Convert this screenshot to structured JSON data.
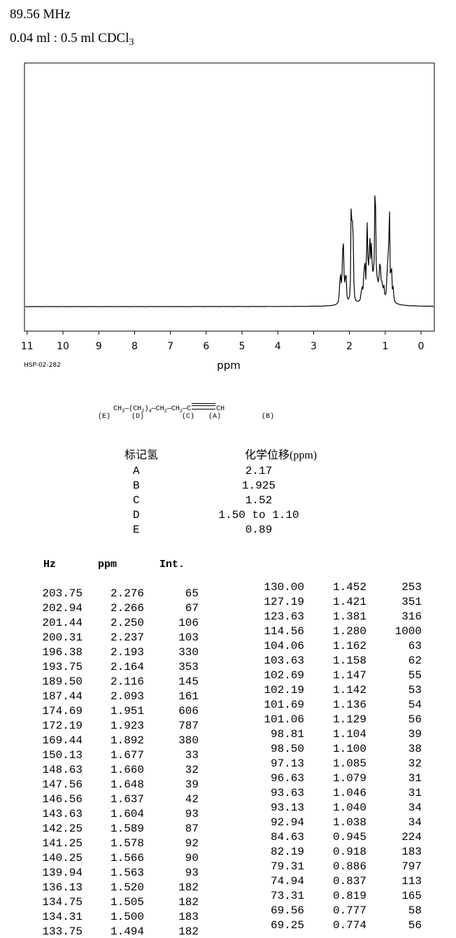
{
  "header": {
    "frequency": "89.56 MHz",
    "sample_prefix": "0.04 ml : 0.5 ml CDCl",
    "sample_sub": "3"
  },
  "spectrum_code": "HSP-02-282",
  "chart_data": {
    "type": "line",
    "xlabel": "ppm",
    "xlim": [
      11,
      0
    ],
    "x_ticks": [
      "11",
      "10",
      "9",
      "8",
      "7",
      "6",
      "5",
      "4",
      "3",
      "2",
      "1",
      "0"
    ],
    "baseline_intensity": 0,
    "series": [
      {
        "x": [
          2.276,
          2.266,
          2.25,
          2.237,
          2.193,
          2.164,
          2.116,
          2.093,
          1.951,
          1.923,
          1.892,
          1.677,
          1.66,
          1.648,
          1.637,
          1.604,
          1.589,
          1.578,
          1.566,
          1.563,
          1.52,
          1.505,
          1.5,
          1.494,
          1.452,
          1.421,
          1.381,
          1.28,
          1.162,
          1.158,
          1.147,
          1.142,
          1.136,
          1.129,
          1.104,
          1.1,
          1.085,
          1.079,
          1.046,
          1.04,
          1.038,
          0.945,
          0.918,
          0.886,
          0.837,
          0.819,
          0.777,
          0.774
        ],
        "values": [
          65,
          67,
          106,
          103,
          330,
          353,
          145,
          161,
          606,
          787,
          380,
          33,
          32,
          39,
          42,
          93,
          87,
          92,
          90,
          93,
          182,
          182,
          183,
          182,
          253,
          351,
          316,
          1000,
          63,
          62,
          55,
          53,
          54,
          56,
          39,
          38,
          32,
          31,
          31,
          34,
          34,
          224,
          183,
          797,
          113,
          165,
          58,
          56
        ]
      }
    ]
  },
  "structure": {
    "formula_parts": [
      "CH",
      "3",
      "—(CH",
      "2",
      ")",
      "4",
      "—CH",
      "2",
      "—CH",
      "2",
      "—C",
      "CH"
    ],
    "labels": [
      "(E)",
      "(D)",
      "(C)",
      "(A)",
      "(B)"
    ]
  },
  "assignments": {
    "col1_header": "标记氢",
    "col2_header": "化学位移(ppm)",
    "rows": [
      {
        "label": "A",
        "shift": "2.17"
      },
      {
        "label": "B",
        "shift": "1.925"
      },
      {
        "label": "C",
        "shift": "1.52"
      },
      {
        "label": "D",
        "shift": "1.50 to 1.10"
      },
      {
        "label": "E",
        "shift": "0.89"
      }
    ]
  },
  "peak_table": {
    "headers": [
      "Hz",
      "ppm",
      "Int."
    ],
    "left": [
      [
        "203.75",
        "2.276",
        "65"
      ],
      [
        "202.94",
        "2.266",
        "67"
      ],
      [
        "201.44",
        "2.250",
        "106"
      ],
      [
        "200.31",
        "2.237",
        "103"
      ],
      [
        "196.38",
        "2.193",
        "330"
      ],
      [
        "193.75",
        "2.164",
        "353"
      ],
      [
        "189.50",
        "2.116",
        "145"
      ],
      [
        "187.44",
        "2.093",
        "161"
      ],
      [
        "174.69",
        "1.951",
        "606"
      ],
      [
        "172.19",
        "1.923",
        "787"
      ],
      [
        "169.44",
        "1.892",
        "380"
      ],
      [
        "150.13",
        "1.677",
        "33"
      ],
      [
        "148.63",
        "1.660",
        "32"
      ],
      [
        "147.56",
        "1.648",
        "39"
      ],
      [
        "146.56",
        "1.637",
        "42"
      ],
      [
        "143.63",
        "1.604",
        "93"
      ],
      [
        "142.25",
        "1.589",
        "87"
      ],
      [
        "141.25",
        "1.578",
        "92"
      ],
      [
        "140.25",
        "1.566",
        "90"
      ],
      [
        "139.94",
        "1.563",
        "93"
      ],
      [
        "136.13",
        "1.520",
        "182"
      ],
      [
        "134.75",
        "1.505",
        "182"
      ],
      [
        "134.31",
        "1.500",
        "183"
      ],
      [
        "133.75",
        "1.494",
        "182"
      ]
    ],
    "right": [
      [
        "130.00",
        "1.452",
        "253"
      ],
      [
        "127.19",
        "1.421",
        "351"
      ],
      [
        "123.63",
        "1.381",
        "316"
      ],
      [
        "114.56",
        "1.280",
        "1000"
      ],
      [
        "104.06",
        "1.162",
        "63"
      ],
      [
        "103.63",
        "1.158",
        "62"
      ],
      [
        "102.69",
        "1.147",
        "55"
      ],
      [
        "102.19",
        "1.142",
        "53"
      ],
      [
        "101.69",
        "1.136",
        "54"
      ],
      [
        "101.06",
        "1.129",
        "56"
      ],
      [
        "98.81",
        "1.104",
        "39"
      ],
      [
        "98.50",
        "1.100",
        "38"
      ],
      [
        "97.13",
        "1.085",
        "32"
      ],
      [
        "96.63",
        "1.079",
        "31"
      ],
      [
        "93.63",
        "1.046",
        "31"
      ],
      [
        "93.13",
        "1.040",
        "34"
      ],
      [
        "92.94",
        "1.038",
        "34"
      ],
      [
        "84.63",
        "0.945",
        "224"
      ],
      [
        "82.19",
        "0.918",
        "183"
      ],
      [
        "79.31",
        "0.886",
        "797"
      ],
      [
        "74.94",
        "0.837",
        "113"
      ],
      [
        "73.31",
        "0.819",
        "165"
      ],
      [
        "69.56",
        "0.777",
        "58"
      ],
      [
        "69.25",
        "0.774",
        "56"
      ]
    ]
  }
}
